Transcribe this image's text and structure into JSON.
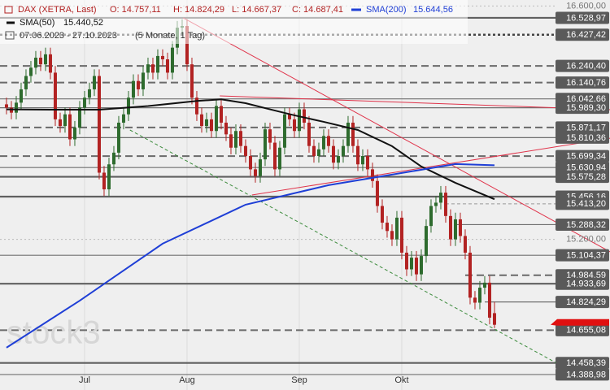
{
  "chart_data": {
    "type": "candlestick",
    "header": {
      "instrument": "DAX (XETRA, Last)",
      "open": "O: 14.757,11",
      "high": "H: 14.824,29",
      "low": "L: 14.667,37",
      "close": "C: 14.687,41",
      "period": "07.06.2023 - 27.10.2023",
      "span": "(5 Monate, 1 Tag)"
    },
    "watermark": "stock3",
    "up_color": "#2e6b2e",
    "down_color": "#b22222",
    "xlim": [
      -1.33,
      123.67
    ],
    "ylim": [
      14296,
      16636
    ],
    "xticks": [
      {
        "value": 16,
        "label": "Jul"
      },
      {
        "value": 37,
        "label": "Aug"
      },
      {
        "value": 60,
        "label": "Sep"
      },
      {
        "value": 81,
        "label": "Okt"
      }
    ],
    "yticks": [
      {
        "value": 16600,
        "label": "16.600,00"
      },
      {
        "value": 15200,
        "label": "15.200,00"
      }
    ],
    "open": [
      16010,
      15990,
      15960,
      16020,
      16100,
      16180,
      16230,
      16290,
      16250,
      16310,
      16200,
      15920,
      15880,
      15950,
      15800,
      15870,
      15990,
      16050,
      16100,
      16180,
      15600,
      15500,
      15650,
      15720,
      15900,
      15950,
      16050,
      16150,
      16100,
      16200,
      16250,
      16200,
      16300,
      16280,
      16200,
      16350,
      16470,
      16480,
      16250,
      16050,
      15950,
      15880,
      15920,
      15850,
      16000,
      15900,
      15830,
      15750,
      15850,
      15760,
      15700,
      15620,
      15580,
      15680,
      15860,
      15780,
      15620,
      15750,
      15950,
      15920,
      15850,
      15980,
      15900,
      15760,
      15700,
      15740,
      15820,
      15760,
      15660,
      15700,
      15760,
      15900,
      15760,
      15650,
      15700,
      15620,
      15550,
      15400,
      15300,
      15250,
      15200,
      15330,
      15120,
      15020,
      15090,
      14990,
      15100,
      15280,
      15400,
      15420,
      15480,
      15340,
      15200,
      15320,
      15220,
      15120,
      14850,
      14820,
      14910,
      14940,
      14757.11
    ],
    "high": [
      16050,
      16030,
      16060,
      16140,
      16220,
      16270,
      16330,
      16330,
      16350,
      16350,
      16240,
      15960,
      15990,
      15990,
      15910,
      16030,
      16090,
      16140,
      16220,
      16220,
      15640,
      15690,
      15760,
      15940,
      15990,
      16090,
      16190,
      16190,
      16240,
      16290,
      16290,
      16340,
      16340,
      16320,
      16390,
      16510,
      16520,
      16520,
      16290,
      16090,
      15990,
      15960,
      15960,
      16040,
      16040,
      15940,
      15870,
      15890,
      15890,
      15800,
      15740,
      15660,
      15720,
      15900,
      15900,
      15820,
      15790,
      15990,
      15990,
      15960,
      16020,
      16020,
      15940,
      15800,
      15780,
      15860,
      15860,
      15800,
      15740,
      15800,
      15940,
      15940,
      15800,
      15740,
      15740,
      15660,
      15590,
      15440,
      15340,
      15290,
      15370,
      15370,
      15160,
      15130,
      15130,
      15140,
      15320,
      15440,
      15460,
      15520,
      15520,
      15380,
      15360,
      15360,
      15260,
      15160,
      14890,
      14950,
      14980,
      14980,
      14824.29
    ],
    "low": [
      15950,
      15920,
      15920,
      15980,
      16060,
      16140,
      16190,
      16210,
      16210,
      16160,
      15880,
      15840,
      15840,
      15760,
      15760,
      15830,
      15950,
      16010,
      16060,
      15560,
      15460,
      15460,
      15610,
      15680,
      15860,
      15910,
      16010,
      16060,
      16060,
      16160,
      16160,
      16160,
      16240,
      16160,
      16160,
      16310,
      16430,
      16210,
      16010,
      15910,
      15840,
      15840,
      15810,
      15810,
      15860,
      15790,
      15710,
      15710,
      15720,
      15660,
      15580,
      15540,
      15540,
      15640,
      15740,
      15580,
      15580,
      15710,
      15880,
      15810,
      15810,
      15860,
      15720,
      15660,
      15660,
      15700,
      15720,
      15620,
      15620,
      15660,
      15720,
      15720,
      15610,
      15610,
      15580,
      15510,
      15360,
      15260,
      15210,
      15160,
      15160,
      15080,
      14980,
      14980,
      14950,
      14950,
      15060,
      15240,
      15360,
      15380,
      15300,
      15160,
      15160,
      15180,
      15080,
      14810,
      14780,
      14780,
      14870,
      14690,
      14667.37
    ],
    "close": [
      15990,
      15960,
      16020,
      16100,
      16180,
      16230,
      16290,
      16250,
      16310,
      16200,
      15920,
      15880,
      15950,
      15800,
      15870,
      15990,
      16050,
      16100,
      16180,
      15600,
      15500,
      15650,
      15720,
      15900,
      15950,
      16050,
      16150,
      16100,
      16200,
      16250,
      16200,
      16300,
      16280,
      16200,
      16350,
      16470,
      16480,
      16250,
      16050,
      15950,
      15880,
      15920,
      15850,
      16000,
      15900,
      15830,
      15750,
      15850,
      15760,
      15700,
      15620,
      15580,
      15680,
      15860,
      15780,
      15620,
      15750,
      15950,
      15920,
      15850,
      15980,
      15900,
      15760,
      15700,
      15740,
      15820,
      15760,
      15660,
      15700,
      15760,
      15900,
      15760,
      15650,
      15700,
      15620,
      15550,
      15400,
      15300,
      15250,
      15200,
      15330,
      15120,
      15020,
      15090,
      14990,
      15100,
      15280,
      15400,
      15420,
      15480,
      15340,
      15200,
      15320,
      15220,
      15120,
      14850,
      14820,
      14910,
      14940,
      14730,
      14687.41
    ],
    "series": [
      {
        "name": "SMA(50)",
        "value_label": "15.440,52",
        "color": "#111111",
        "x": [
          0,
          9,
          19,
          29,
          39,
          44,
          49,
          54,
          59,
          65,
          72,
          79,
          85,
          92,
          100
        ],
        "values": [
          15980,
          15978,
          15978,
          16000,
          16030,
          16040,
          16017,
          15980,
          15944,
          15905,
          15856,
          15759,
          15637,
          15539,
          15440.52
        ]
      },
      {
        "name": "SMA(200)",
        "value_label": "15.644,56",
        "color": "#1f3fd6",
        "x": [
          0,
          15,
          32,
          49,
          66,
          82,
          92,
          100
        ],
        "values": [
          14550,
          14832,
          15174,
          15408,
          15525,
          15603,
          15652,
          15644.56
        ]
      }
    ],
    "levels": [
      {
        "value": 16528.97,
        "label": "16.528,97",
        "style": "thick"
      },
      {
        "value": 16427.42,
        "label": "16.427,42",
        "style": "dotted"
      },
      {
        "value": 16240.4,
        "label": "16.240,40",
        "style": "dashed"
      },
      {
        "value": 16140.76,
        "label": "16.140,76",
        "style": "dashed"
      },
      {
        "value": 16042.66,
        "label": "16.042,66",
        "style": "solid"
      },
      {
        "value": 15989.3,
        "label": "15.989,30",
        "style": "solid"
      },
      {
        "value": 15871.17,
        "label": "15.871,17",
        "style": "dashed"
      },
      {
        "value": 15810.36,
        "label": "15.810,36",
        "style": "solid"
      },
      {
        "value": 15699.34,
        "label": "15.699,34",
        "style": "dashed"
      },
      {
        "value": 15630.94,
        "label": "15.630,94",
        "style": "solid"
      },
      {
        "value": 15575.28,
        "label": "15.575,28",
        "style": "thick"
      },
      {
        "value": 15456.16,
        "label": "15.456,16",
        "style": "thick"
      },
      {
        "value": 15413.2,
        "label": "15.413,20",
        "style": "light",
        "start": 90
      },
      {
        "value": 15288.32,
        "label": "15.288,32",
        "style": "solid",
        "start": 92
      },
      {
        "value": 15104.37,
        "label": "15.104,37",
        "style": "solid"
      },
      {
        "value": 14984.59,
        "label": "14.984,59",
        "style": "dashed",
        "start": 94
      },
      {
        "value": 14933.69,
        "label": "14.933,69",
        "style": "thick"
      },
      {
        "value": 14824.29,
        "label": "14.824,29",
        "style": "solid",
        "start": 98
      },
      {
        "value": 14655.08,
        "label": "14.655,08",
        "style": "dashed"
      },
      {
        "value": 14458.39,
        "label": "14.458,39",
        "style": "thick"
      },
      {
        "value": 14388.98,
        "label": "14.388,98",
        "style": "solid"
      }
    ],
    "trendlines": [
      {
        "color": "#e0334a",
        "style": "solid",
        "x": [
          36.2,
          123.7
        ],
        "values": [
          16529,
          15125
        ]
      },
      {
        "color": "#e0334a",
        "style": "solid",
        "x": [
          43.7,
          123.7
        ],
        "values": [
          16061,
          15978
        ]
      },
      {
        "color": "#e0334a",
        "style": "solid",
        "x": [
          50.3,
          123.7
        ],
        "values": [
          15466,
          15807
        ]
      },
      {
        "color": "#3a8a3a",
        "style": "dashed",
        "x": [
          25.3,
          113.7
        ],
        "values": [
          15856,
          14442
        ]
      }
    ]
  }
}
